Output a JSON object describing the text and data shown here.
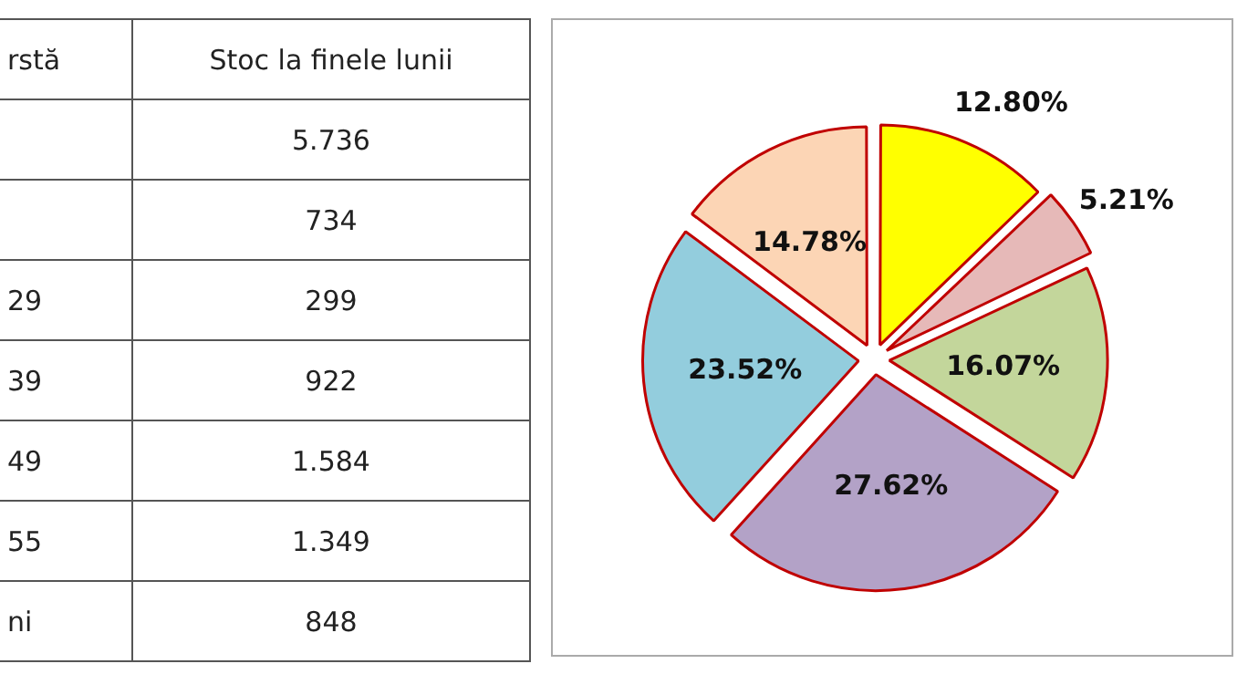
{
  "chart_data": [
    {
      "type": "other",
      "xlabel": "rstă",
      "ylabel": "Stoc la finele lunii",
      "categories": [
        null,
        null,
        "29",
        "39",
        "49",
        "55",
        "ni"
      ],
      "annotations": [
        "5.736",
        "734",
        "299",
        "922",
        "1.584",
        "1.349",
        "848"
      ]
    },
    {
      "type": "pie",
      "values": [
        12.8,
        5.21,
        16.07,
        27.62,
        23.52,
        14.78
      ],
      "value_labels": [
        "12.80%",
        "5.21%",
        "16.07%",
        "27.62%",
        "23.52%",
        "14.78%"
      ],
      "colors": [
        "#ffff00",
        "#e6b9b8",
        "#c3d69b",
        "#b3a2c7",
        "#93cddd",
        "#fcd5b5"
      ]
    }
  ]
}
